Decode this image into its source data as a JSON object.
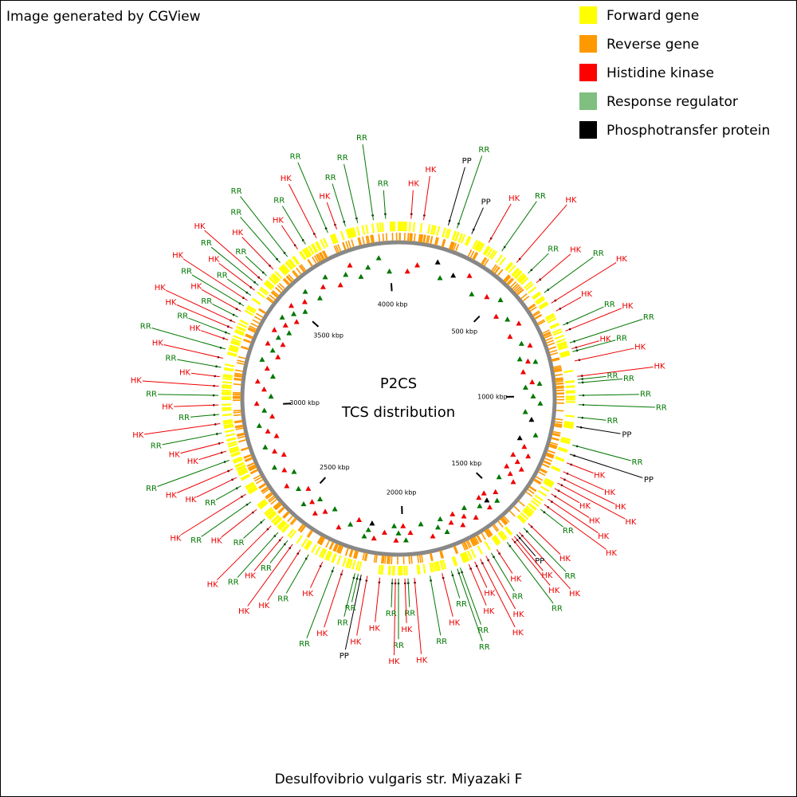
{
  "header": {
    "text": "Image generated by CGView"
  },
  "legend": [
    {
      "label": "Forward gene",
      "color": "#ffff00"
    },
    {
      "label": "Reverse gene",
      "color": "#ff9900"
    },
    {
      "label": "Histidine kinase",
      "color": "#ff0000"
    },
    {
      "label": "Response regulator",
      "color": "#7fbf7f"
    },
    {
      "label": "Phosphotransfer protein",
      "color": "#000000"
    }
  ],
  "title": "P2CS",
  "subtitle": "TCS distribution",
  "caption": "Desulfovibrio vulgaris str. Miyazaki F",
  "sequence_length": 4040,
  "ticks": [
    {
      "value": 500,
      "label": "500 kbp"
    },
    {
      "value": 1000,
      "label": "1000 kbp"
    },
    {
      "value": 1500,
      "label": "1500 kbp"
    },
    {
      "value": 2000,
      "label": "2000 kbp"
    },
    {
      "value": 2500,
      "label": "2500 kbp"
    },
    {
      "value": 3000,
      "label": "3000 kbp"
    },
    {
      "value": 3500,
      "label": "3500 kbp"
    },
    {
      "value": 4000,
      "label": "4000 kbp"
    }
  ],
  "feature_colors": {
    "HK": "#ee0000",
    "RR": "#007700",
    "PP": "#000000"
  },
  "features": [
    {
      "label": "HK",
      "position": 45
    },
    {
      "label": "HK",
      "position": 90
    },
    {
      "label": "PP",
      "position": 180
    },
    {
      "label": "RR",
      "position": 213
    },
    {
      "label": "PP",
      "position": 269
    },
    {
      "label": "HK",
      "position": 337
    },
    {
      "label": "RR",
      "position": 393
    },
    {
      "label": "HK",
      "position": 460
    },
    {
      "label": "RR",
      "position": 516
    },
    {
      "label": "HK",
      "position": 561
    },
    {
      "label": "RR",
      "position": 606
    },
    {
      "label": "HK",
      "position": 651
    },
    {
      "label": "HK",
      "position": 684
    },
    {
      "label": "RR",
      "position": 740
    },
    {
      "label": "HK",
      "position": 763
    },
    {
      "label": "RR",
      "position": 808
    },
    {
      "label": "HK",
      "position": 830
    },
    {
      "label": "RR",
      "position": 841
    },
    {
      "label": "HK",
      "position": 875
    },
    {
      "label": "HK",
      "position": 931
    },
    {
      "label": "RR",
      "position": 942
    },
    {
      "label": "RR",
      "position": 954
    },
    {
      "label": "RR",
      "position": 999
    },
    {
      "label": "RR",
      "position": 1032
    },
    {
      "label": "RR",
      "position": 1077
    },
    {
      "label": "PP",
      "position": 1111
    },
    {
      "label": "RR",
      "position": 1178
    },
    {
      "label": "PP",
      "position": 1212
    },
    {
      "label": "HK",
      "position": 1245
    },
    {
      "label": "HK",
      "position": 1279
    },
    {
      "label": "HK",
      "position": 1302
    },
    {
      "label": "HK",
      "position": 1324
    },
    {
      "label": "HK",
      "position": 1346
    },
    {
      "label": "HK",
      "position": 1369
    },
    {
      "label": "HK",
      "position": 1391
    },
    {
      "label": "HK",
      "position": 1414
    },
    {
      "label": "RR",
      "position": 1436
    },
    {
      "label": "HK",
      "position": 1503
    },
    {
      "label": "RR",
      "position": 1526
    },
    {
      "label": "HK",
      "position": 1548
    },
    {
      "label": "PP",
      "position": 1560
    },
    {
      "label": "HK",
      "position": 1571
    },
    {
      "label": "HK",
      "position": 1582
    },
    {
      "label": "RR",
      "position": 1604
    },
    {
      "label": "HK",
      "position": 1649
    },
    {
      "label": "RR",
      "position": 1672
    },
    {
      "label": "HK",
      "position": 1694
    },
    {
      "label": "HK",
      "position": 1717
    },
    {
      "label": "HK",
      "position": 1739
    },
    {
      "label": "HK",
      "position": 1762
    },
    {
      "label": "RR",
      "position": 1795
    },
    {
      "label": "RR",
      "position": 1806
    },
    {
      "label": "RR",
      "position": 1829
    },
    {
      "label": "HK",
      "position": 1863
    },
    {
      "label": "RR",
      "position": 1907
    },
    {
      "label": "HK",
      "position": 1963
    },
    {
      "label": "RR",
      "position": 1986
    },
    {
      "label": "HK",
      "position": 1997
    },
    {
      "label": "RR",
      "position": 2020
    },
    {
      "label": "HK",
      "position": 2031
    },
    {
      "label": "RR",
      "position": 2042
    },
    {
      "label": "HK",
      "position": 2087
    },
    {
      "label": "HK",
      "position": 2132
    },
    {
      "label": "PP",
      "position": 2154
    },
    {
      "label": "RR",
      "position": 2165
    },
    {
      "label": "RR",
      "position": 2177
    },
    {
      "label": "HK",
      "position": 2222
    },
    {
      "label": "RR",
      "position": 2255
    },
    {
      "label": "HK",
      "position": 2300
    },
    {
      "label": "RR",
      "position": 2356
    },
    {
      "label": "HK",
      "position": 2390
    },
    {
      "label": "HK",
      "position": 2424
    },
    {
      "label": "RR",
      "position": 2446
    },
    {
      "label": "HK",
      "position": 2468
    },
    {
      "label": "RR",
      "position": 2491
    },
    {
      "label": "HK",
      "position": 2525
    },
    {
      "label": "RR",
      "position": 2558
    },
    {
      "label": "HK",
      "position": 2603
    },
    {
      "label": "RR",
      "position": 2637
    },
    {
      "label": "HK",
      "position": 2670
    },
    {
      "label": "RR",
      "position": 2704
    },
    {
      "label": "HK",
      "position": 2738
    },
    {
      "label": "HK",
      "position": 2771
    },
    {
      "label": "RR",
      "position": 2805
    },
    {
      "label": "HK",
      "position": 2839
    },
    {
      "label": "HK",
      "position": 2872
    },
    {
      "label": "RR",
      "position": 2906
    },
    {
      "label": "HK",
      "position": 2940
    },
    {
      "label": "RR",
      "position": 2973
    },
    {
      "label": "HK",
      "position": 3007
    },
    {
      "label": "RR",
      "position": 3041
    },
    {
      "label": "HK",
      "position": 3074
    },
    {
      "label": "HK",
      "position": 3108
    },
    {
      "label": "RR",
      "position": 3142
    },
    {
      "label": "HK",
      "position": 3175
    },
    {
      "label": "RR",
      "position": 3209
    },
    {
      "label": "HK",
      "position": 3243
    },
    {
      "label": "RR",
      "position": 3265
    },
    {
      "label": "HK",
      "position": 3287
    },
    {
      "label": "HK",
      "position": 3310
    },
    {
      "label": "RR",
      "position": 3332
    },
    {
      "label": "HK",
      "position": 3355
    },
    {
      "label": "RR",
      "position": 3377
    },
    {
      "label": "HK",
      "position": 3400
    },
    {
      "label": "RR",
      "position": 3422
    },
    {
      "label": "HK",
      "position": 3445
    },
    {
      "label": "RR",
      "position": 3467
    },
    {
      "label": "HK",
      "position": 3489
    },
    {
      "label": "RR",
      "position": 3512
    },
    {
      "label": "HK",
      "position": 3545
    },
    {
      "label": "RR",
      "position": 3579
    },
    {
      "label": "RR",
      "position": 3613
    },
    {
      "label": "HK",
      "position": 3658
    },
    {
      "label": "RR",
      "position": 3691
    },
    {
      "label": "HK",
      "position": 3736
    },
    {
      "label": "RR",
      "position": 3781
    },
    {
      "label": "HK",
      "position": 3815
    },
    {
      "label": "RR",
      "position": 3848
    },
    {
      "label": "RR",
      "position": 3893
    },
    {
      "label": "RR",
      "position": 3950
    },
    {
      "label": "RR",
      "position": 3994
    }
  ]
}
